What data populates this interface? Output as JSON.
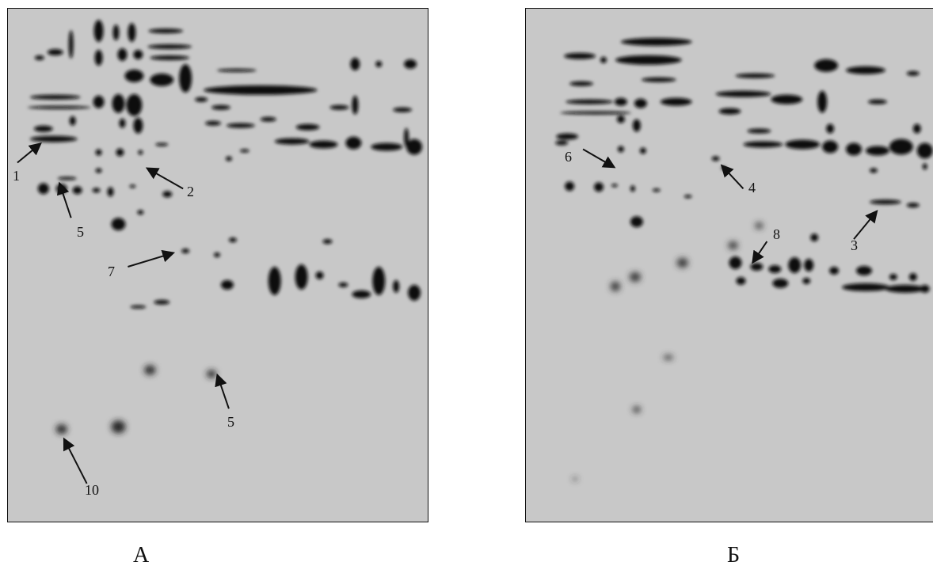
{
  "panels": [
    {
      "caption": "А",
      "callouts": [
        "1",
        "2",
        "5",
        "7",
        "5",
        "10"
      ]
    },
    {
      "caption": "Б",
      "callouts": [
        "6",
        "4",
        "3",
        "8"
      ]
    }
  ],
  "colors": {
    "gel_background": "#c8c8c8",
    "spot": "#111111",
    "page_background": "#ffffff"
  }
}
